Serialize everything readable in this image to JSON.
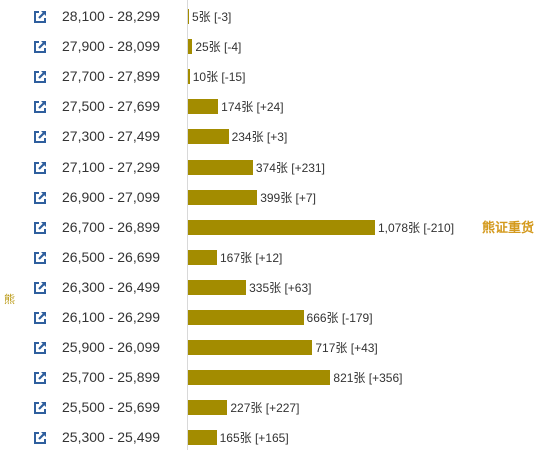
{
  "chart_data": {
    "type": "bar",
    "orientation": "horizontal",
    "categories": [
      "28,100 - 28,299",
      "27,900 - 28,099",
      "27,700 - 27,899",
      "27,500 - 27,699",
      "27,300 - 27,499",
      "27,100 - 27,299",
      "26,900 - 27,099",
      "26,700 - 26,899",
      "26,500 - 26,699",
      "26,300 - 26,499",
      "26,100 - 26,299",
      "25,900 - 26,099",
      "25,700 - 25,899",
      "25,500 - 25,699",
      "25,300 - 25,499"
    ],
    "values": [
      5,
      25,
      10,
      174,
      234,
      374,
      399,
      1078,
      167,
      335,
      666,
      717,
      821,
      227,
      165
    ],
    "labels": [
      "5张 [-3]",
      "25张 [-4]",
      "10张 [-15]",
      "174张 [+24]",
      "234张 [+3]",
      "374张 [+231]",
      "399张 [+7]",
      "1,078张 [-210]",
      "167张 [+12]",
      "335张 [+63]",
      "666张 [-179]",
      "717张 [+43]",
      "821张 [+356]",
      "227张 [+227]",
      "165张 [+165]"
    ],
    "side_label": "熊",
    "annotation": {
      "text": "熊证重货",
      "row": 7
    },
    "bar_color": "#a38c00",
    "annotation_color": "#d49a1e",
    "icon": "external-link-icon",
    "xlim": [
      0,
      1078
    ]
  }
}
